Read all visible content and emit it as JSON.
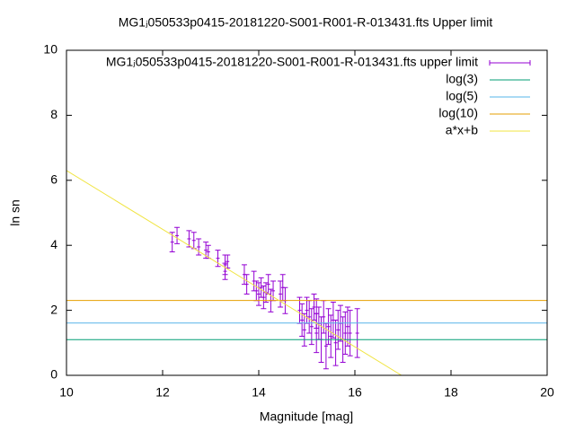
{
  "chart_data": {
    "type": "scatter",
    "title": "MG1ⱼ050533p0415-20181220-S001-R001-R-013431.fts Upper limit",
    "x_label": "Magnitude [mag]",
    "y_label": "ln sn",
    "xlim": [
      10,
      20
    ],
    "ylim": [
      0,
      10
    ],
    "xticks": [
      10,
      12,
      14,
      16,
      18,
      20
    ],
    "yticks": [
      0,
      2,
      4,
      6,
      8,
      10
    ],
    "legend": "top-right",
    "series": [
      {
        "name": "MG1ⱼ050533p0415-20181220-S001-R001-R-013431.fts upper limit",
        "type": "errorbars",
        "color": "#9400d3",
        "x": [
          12.2,
          12.3,
          12.55,
          12.65,
          12.75,
          12.9,
          12.95,
          13.15,
          13.3,
          13.3,
          13.35,
          13.7,
          13.75,
          13.9,
          13.95,
          14.0,
          14.05,
          14.1,
          14.15,
          14.2,
          14.25,
          14.3,
          14.45,
          14.5,
          14.55,
          14.85,
          14.9,
          14.95,
          15.0,
          15.05,
          15.1,
          15.15,
          15.2,
          15.2,
          15.25,
          15.3,
          15.35,
          15.4,
          15.45,
          15.5,
          15.55,
          15.6,
          15.65,
          15.7,
          15.75,
          15.8,
          15.85,
          15.9,
          16.05
        ],
        "values": [
          4.1,
          4.3,
          4.2,
          4.15,
          3.95,
          3.85,
          3.8,
          3.6,
          3.4,
          3.2,
          3.5,
          3.1,
          2.8,
          2.9,
          2.6,
          2.5,
          2.7,
          2.4,
          2.55,
          2.8,
          2.3,
          2.6,
          2.5,
          2.7,
          2.3,
          2.0,
          1.7,
          1.4,
          2.0,
          1.8,
          1.5,
          2.1,
          1.3,
          1.9,
          1.6,
          1.1,
          1.8,
          0.9,
          1.5,
          1.2,
          1.7,
          1.0,
          1.4,
          1.6,
          1.1,
          1.3,
          1.5,
          1.3,
          1.3
        ],
        "errors": [
          0.3,
          0.25,
          0.25,
          0.25,
          0.25,
          0.25,
          0.2,
          0.25,
          0.3,
          0.25,
          0.2,
          0.3,
          0.3,
          0.3,
          0.3,
          0.35,
          0.3,
          0.35,
          0.3,
          0.3,
          0.35,
          0.3,
          0.4,
          0.4,
          0.4,
          0.4,
          0.5,
          0.5,
          0.4,
          0.5,
          0.55,
          0.4,
          0.6,
          0.45,
          0.5,
          0.7,
          0.5,
          0.7,
          0.55,
          0.65,
          0.55,
          0.7,
          0.6,
          0.55,
          0.7,
          0.65,
          0.6,
          0.7,
          0.75
        ]
      },
      {
        "name": "log(3)",
        "type": "hline",
        "color": "#009e73",
        "value": 1.0986
      },
      {
        "name": "log(5)",
        "type": "hline",
        "color": "#56b4e9",
        "value": 1.6094
      },
      {
        "name": "log(10)",
        "type": "hline",
        "color": "#e69f00",
        "value": 2.3026
      },
      {
        "name": "a*x+b",
        "type": "line",
        "color": "#f0e442",
        "x": [
          10,
          16.97
        ],
        "values": [
          6.3,
          0
        ]
      }
    ]
  }
}
